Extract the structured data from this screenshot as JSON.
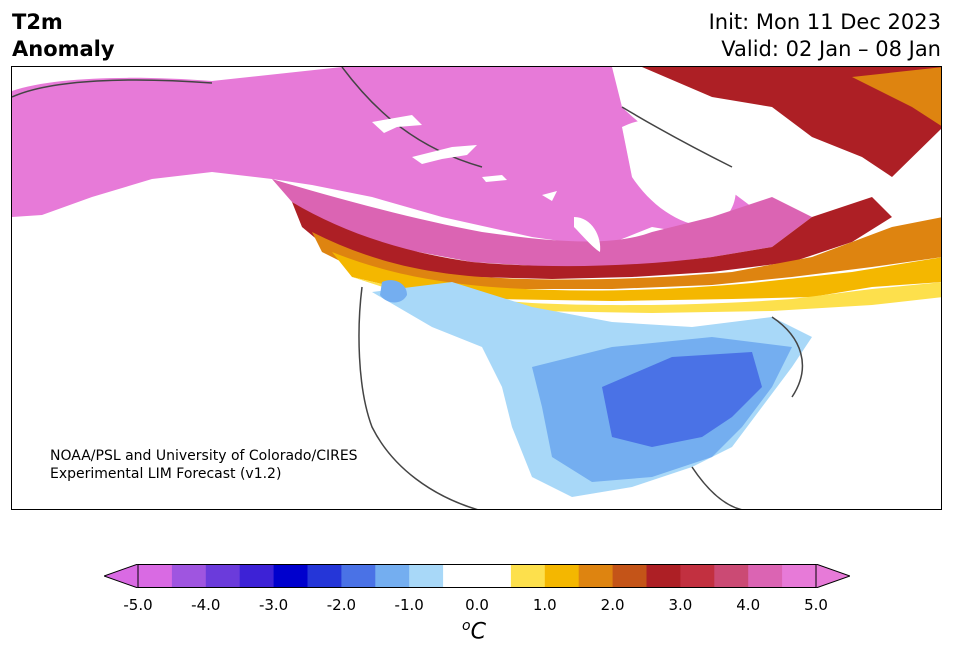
{
  "header": {
    "title_line1": "T2m",
    "title_line2": "Anomaly",
    "init": "Init: Mon 11 Dec 2023",
    "valid": "Valid: 02 Jan – 08 Jan"
  },
  "credit": {
    "line1": "NOAA/PSL and University of Colorado/CIRES",
    "line2": "Experimental LIM Forecast (v1.2)"
  },
  "colorbar": {
    "unit_base": "C",
    "unit_super": "o",
    "ticks": [
      "-5.0",
      "-4.0",
      "-3.0",
      "-2.0",
      "-1.0",
      "0.0",
      "1.0",
      "2.0",
      "3.0",
      "4.0",
      "5.0"
    ],
    "tick_values": [
      -5,
      -4,
      -3,
      -2,
      -1,
      0,
      1,
      2,
      3,
      4,
      5
    ],
    "range": [
      -5,
      5
    ],
    "colors": [
      "#d96ae3",
      "#9f55e0",
      "#6b3bdb",
      "#3d22d6",
      "#0000cd",
      "#2536d8",
      "#4a72e6",
      "#74aef0",
      "#a8d8f8",
      "#ffffff",
      "#ffffff",
      "#fde04c",
      "#f4b700",
      "#de8410",
      "#c45418",
      "#ad1f25",
      "#c23040",
      "#cb4a74",
      "#db64b3",
      "#e77ad8"
    ],
    "extend_low": "#d96ae3",
    "extend_high": "#e77ad8"
  },
  "map": {
    "colors": {
      "strong_warm": "#e77ad8",
      "warm_4": "#db64b3",
      "warm_3": "#ad1f25",
      "warm_2": "#de8410",
      "warm_1": "#fde04c",
      "cool_1": "#a8d8f8",
      "cool_2": "#74aef0",
      "cool_3": "#4a72e6"
    }
  }
}
